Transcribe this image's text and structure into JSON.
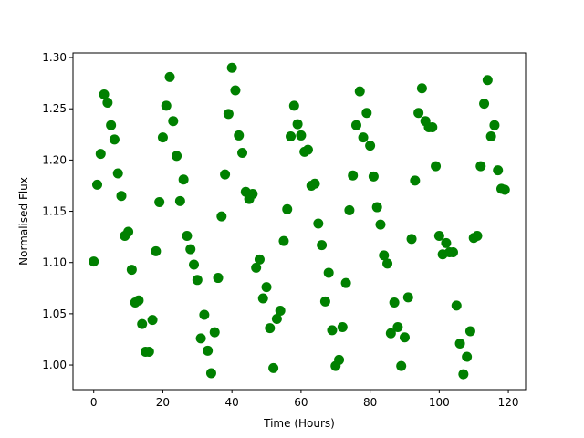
{
  "chart_data": {
    "type": "scatter",
    "x_label": "Time (Hours)",
    "y_label": "Normalised Flux",
    "color": "#008000",
    "x": [
      0,
      1,
      2,
      3,
      4,
      5,
      6,
      7,
      8,
      9,
      10,
      11,
      12,
      13,
      14,
      15,
      16,
      17,
      18,
      19,
      20,
      21,
      22,
      23,
      24,
      25,
      26,
      27,
      28,
      29,
      30,
      31,
      32,
      33,
      34,
      35,
      36,
      37,
      38,
      39,
      40,
      41,
      42,
      43,
      44,
      45,
      46,
      47,
      48,
      49,
      50,
      51,
      52,
      53,
      54,
      55,
      56,
      57,
      58,
      59,
      60,
      61,
      62,
      63,
      64,
      65,
      66,
      67,
      68,
      69,
      70,
      71,
      72,
      73,
      74,
      75,
      76,
      77,
      78,
      79,
      80,
      81,
      82,
      83,
      84,
      85,
      86,
      87,
      88,
      89,
      90,
      91,
      92,
      93,
      94,
      95,
      96,
      97,
      98,
      99,
      100,
      101,
      102,
      103,
      104,
      105,
      106,
      107,
      108,
      109,
      110,
      111,
      112,
      113,
      114,
      115,
      116,
      117,
      118,
      119
    ],
    "values": [
      1.101,
      1.176,
      1.206,
      1.264,
      1.256,
      1.234,
      1.22,
      1.187,
      1.165,
      1.126,
      1.13,
      1.093,
      1.061,
      1.063,
      1.04,
      1.013,
      1.013,
      1.044,
      1.111,
      1.159,
      1.222,
      1.253,
      1.281,
      1.238,
      1.204,
      1.16,
      1.181,
      1.126,
      1.113,
      1.098,
      1.083,
      1.026,
      1.049,
      1.014,
      0.992,
      1.032,
      1.085,
      1.145,
      1.186,
      1.245,
      1.29,
      1.268,
      1.224,
      1.207,
      1.169,
      1.162,
      1.167,
      1.095,
      1.103,
      1.065,
      1.076,
      1.036,
      0.997,
      1.045,
      1.053,
      1.121,
      1.152,
      1.223,
      1.253,
      1.235,
      1.224,
      1.208,
      1.21,
      1.175,
      1.177,
      1.138,
      1.117,
      1.062,
      1.09,
      1.034,
      0.999,
      1.005,
      1.037,
      1.08,
      1.151,
      1.185,
      1.234,
      1.267,
      1.222,
      1.246,
      1.214,
      1.184,
      1.154,
      1.137,
      1.107,
      1.099,
      1.031,
      1.061,
      1.037,
      0.999,
      1.027,
      1.066,
      1.123,
      1.18,
      1.246,
      1.27,
      1.238,
      1.232,
      1.232,
      1.194,
      1.126,
      1.108,
      1.119,
      1.11,
      1.11,
      1.058,
      1.021,
      0.991,
      1.008,
      1.033,
      1.124,
      1.126,
      1.194,
      1.255,
      1.278,
      1.223,
      1.234,
      1.19,
      1.172,
      1.171
    ],
    "xlim": [
      -6,
      125
    ],
    "ylim": [
      0.976,
      1.3045
    ],
    "xticks": [
      0,
      20,
      40,
      60,
      80,
      100,
      120
    ],
    "yticks": [
      {
        "value": 1.0,
        "label": "1.00"
      },
      {
        "value": 1.05,
        "label": "1.05"
      },
      {
        "value": 1.1,
        "label": "1.10"
      },
      {
        "value": 1.15,
        "label": "1.15"
      },
      {
        "value": 1.2,
        "label": "1.20"
      },
      {
        "value": 1.25,
        "label": "1.25"
      },
      {
        "value": 1.3,
        "label": "1.30"
      }
    ]
  }
}
